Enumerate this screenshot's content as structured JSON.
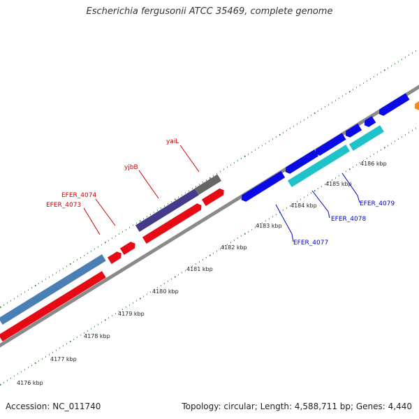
{
  "header": {
    "title": "Escherichia fergusonii ATCC 35469, complete genome"
  },
  "footer": {
    "accession": "Accession: NC_011740",
    "summary": "Topology: circular; Length: 4,588,711 bp; Genes: 4,440"
  },
  "colors": {
    "backbone": "#8a8a8a",
    "tick": "#1c8a1c",
    "forward_cds": "#0a0ae6",
    "reverse_cds": "#e60a14",
    "steelblue_feature": "#4a7fb5",
    "purple_feature": "#433a8a",
    "gray_feature": "#666666",
    "cyan_feature": "#1fc2c8",
    "orange_feature": "#f08a1a",
    "label_red": "#cc0000",
    "label_blue": "#0000cc"
  },
  "kbp_labels": [
    "4176 kbp",
    "4177 kbp",
    "4178 kbp",
    "4179 kbp",
    "4180 kbp",
    "4181 kbp",
    "4182 kbp",
    "4183 kbp",
    "4184 kbp",
    "4185 kbp",
    "4186 kbp"
  ],
  "gene_labels": {
    "yaiL": "yaiL",
    "yjbB": "yjbB",
    "EFER_4074": "EFER_4074",
    "EFER_4073": "EFER_4073",
    "EFER_4077": "EFER_4077",
    "EFER_4078": "EFER_4078",
    "EFER_4079": "EFER_4079"
  }
}
